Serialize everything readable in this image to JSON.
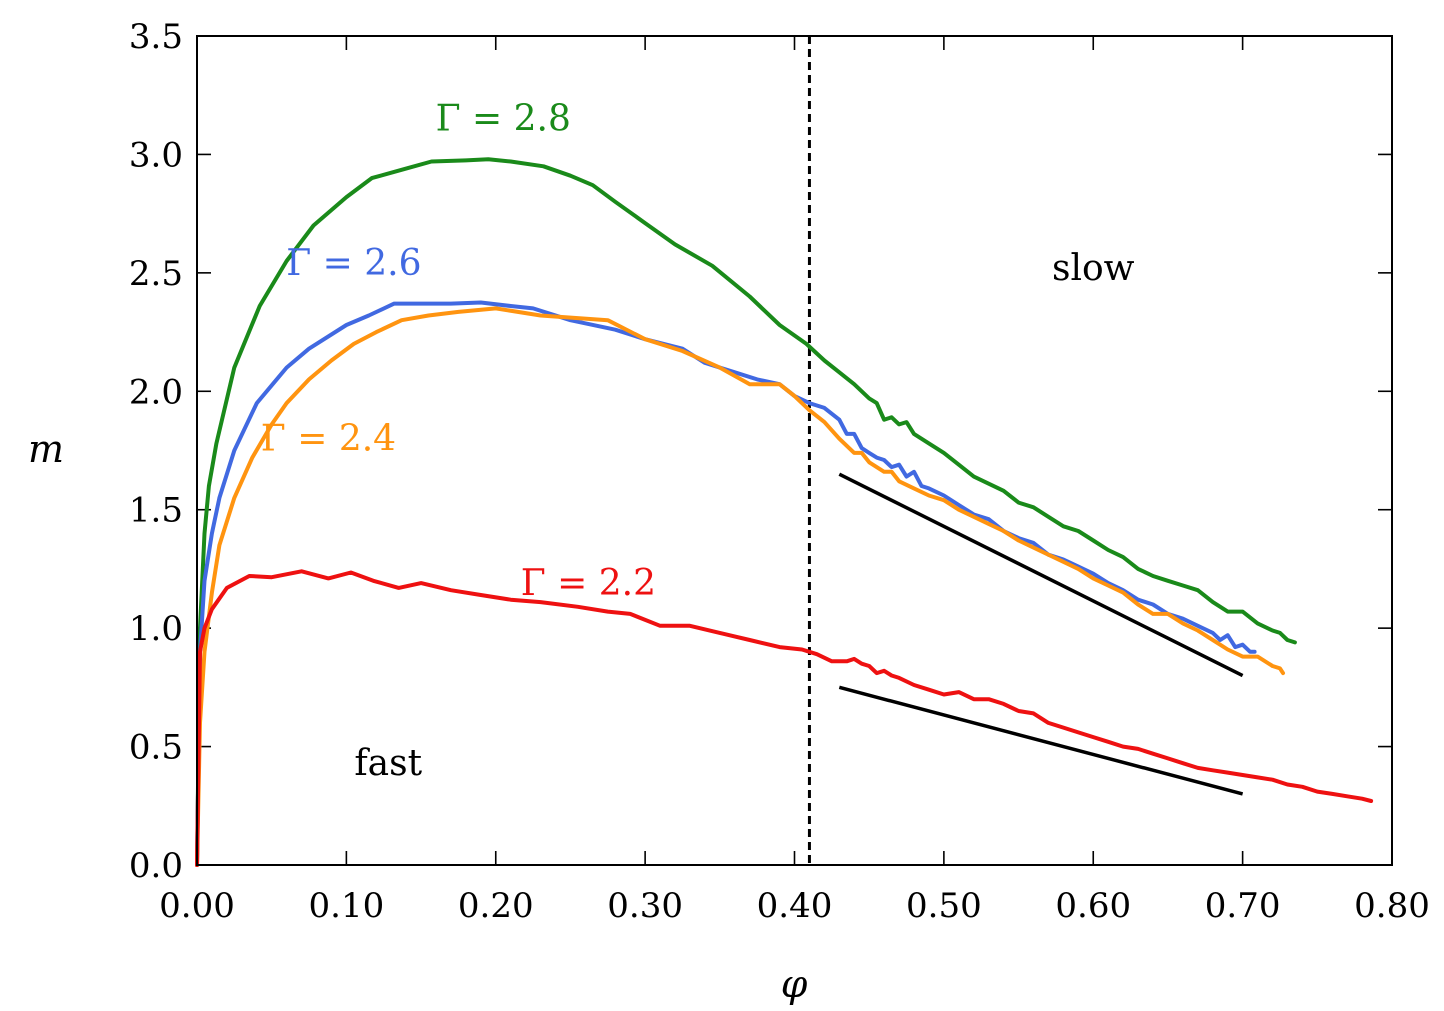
{
  "chart_data": {
    "type": "line",
    "xlabel": "φ",
    "ylabel": "m",
    "xlim": [
      0.0,
      0.8
    ],
    "ylim": [
      0.0,
      3.5
    ],
    "xticks": [
      "0.00",
      "0.10",
      "0.20",
      "0.30",
      "0.40",
      "0.50",
      "0.60",
      "0.70",
      "0.80"
    ],
    "yticks": [
      "0.0",
      "0.5",
      "1.0",
      "1.5",
      "2.0",
      "2.5",
      "3.0",
      "3.5"
    ],
    "grid": false,
    "series": [
      {
        "name": "Γ = 2.8",
        "color": "#1a8a1a",
        "x": [
          0.0,
          0.002,
          0.005,
          0.008,
          0.013,
          0.025,
          0.042,
          0.06,
          0.078,
          0.1,
          0.117,
          0.14,
          0.157,
          0.18,
          0.195,
          0.21,
          0.232,
          0.25,
          0.265,
          0.28,
          0.3,
          0.32,
          0.345,
          0.37,
          0.39,
          0.408,
          0.42,
          0.43,
          0.44,
          0.45,
          0.455,
          0.46,
          0.465,
          0.47,
          0.475,
          0.48,
          0.49,
          0.5,
          0.51,
          0.52,
          0.53,
          0.54,
          0.55,
          0.56,
          0.57,
          0.58,
          0.59,
          0.6,
          0.61,
          0.62,
          0.63,
          0.64,
          0.65,
          0.66,
          0.67,
          0.68,
          0.69,
          0.7,
          0.71,
          0.72,
          0.725,
          0.73,
          0.735
        ],
        "y": [
          0.0,
          1.0,
          1.4,
          1.6,
          1.78,
          2.1,
          2.36,
          2.55,
          2.7,
          2.82,
          2.9,
          2.94,
          2.97,
          2.975,
          2.98,
          2.97,
          2.95,
          2.91,
          2.87,
          2.8,
          2.71,
          2.62,
          2.53,
          2.4,
          2.28,
          2.2,
          2.13,
          2.08,
          2.03,
          1.97,
          1.95,
          1.88,
          1.89,
          1.86,
          1.87,
          1.82,
          1.78,
          1.74,
          1.69,
          1.64,
          1.61,
          1.58,
          1.53,
          1.51,
          1.47,
          1.43,
          1.41,
          1.37,
          1.33,
          1.3,
          1.25,
          1.22,
          1.2,
          1.18,
          1.16,
          1.11,
          1.07,
          1.07,
          1.02,
          0.99,
          0.98,
          0.95,
          0.94
        ]
      },
      {
        "name": "Γ = 2.6",
        "color": "#4169e1",
        "x": [
          0.0,
          0.002,
          0.005,
          0.01,
          0.015,
          0.025,
          0.04,
          0.06,
          0.075,
          0.1,
          0.115,
          0.132,
          0.15,
          0.17,
          0.19,
          0.21,
          0.225,
          0.25,
          0.28,
          0.3,
          0.325,
          0.34,
          0.36,
          0.375,
          0.39,
          0.4,
          0.41,
          0.42,
          0.43,
          0.435,
          0.44,
          0.445,
          0.45,
          0.455,
          0.46,
          0.465,
          0.47,
          0.475,
          0.48,
          0.485,
          0.49,
          0.5,
          0.51,
          0.52,
          0.53,
          0.54,
          0.55,
          0.56,
          0.57,
          0.58,
          0.59,
          0.6,
          0.61,
          0.62,
          0.63,
          0.64,
          0.65,
          0.66,
          0.67,
          0.68,
          0.685,
          0.69,
          0.695,
          0.7,
          0.705,
          0.708
        ],
        "y": [
          0.0,
          0.9,
          1.2,
          1.4,
          1.55,
          1.75,
          1.95,
          2.1,
          2.18,
          2.28,
          2.32,
          2.37,
          2.37,
          2.37,
          2.375,
          2.36,
          2.35,
          2.3,
          2.26,
          2.22,
          2.18,
          2.12,
          2.08,
          2.05,
          2.03,
          1.98,
          1.95,
          1.93,
          1.88,
          1.82,
          1.82,
          1.76,
          1.74,
          1.72,
          1.71,
          1.68,
          1.69,
          1.64,
          1.66,
          1.6,
          1.59,
          1.56,
          1.52,
          1.48,
          1.46,
          1.41,
          1.38,
          1.36,
          1.31,
          1.29,
          1.26,
          1.23,
          1.19,
          1.16,
          1.12,
          1.1,
          1.06,
          1.04,
          1.01,
          0.98,
          0.95,
          0.97,
          0.92,
          0.93,
          0.9,
          0.9
        ]
      },
      {
        "name": "Γ = 2.4",
        "color": "#ff9410",
        "x": [
          0.0,
          0.002,
          0.005,
          0.01,
          0.015,
          0.025,
          0.037,
          0.05,
          0.06,
          0.075,
          0.09,
          0.105,
          0.12,
          0.137,
          0.155,
          0.175,
          0.2,
          0.23,
          0.275,
          0.3,
          0.325,
          0.35,
          0.37,
          0.39,
          0.4,
          0.41,
          0.42,
          0.43,
          0.44,
          0.445,
          0.45,
          0.46,
          0.465,
          0.47,
          0.48,
          0.49,
          0.5,
          0.51,
          0.52,
          0.53,
          0.54,
          0.55,
          0.56,
          0.57,
          0.58,
          0.59,
          0.6,
          0.61,
          0.62,
          0.63,
          0.64,
          0.65,
          0.66,
          0.67,
          0.68,
          0.69,
          0.7,
          0.71,
          0.72,
          0.725,
          0.727
        ],
        "y": [
          0.0,
          0.6,
          0.9,
          1.15,
          1.35,
          1.55,
          1.72,
          1.86,
          1.95,
          2.05,
          2.13,
          2.2,
          2.25,
          2.3,
          2.32,
          2.335,
          2.35,
          2.32,
          2.3,
          2.22,
          2.17,
          2.1,
          2.03,
          2.03,
          1.98,
          1.92,
          1.87,
          1.8,
          1.74,
          1.74,
          1.7,
          1.66,
          1.66,
          1.62,
          1.59,
          1.56,
          1.54,
          1.5,
          1.47,
          1.44,
          1.41,
          1.37,
          1.34,
          1.31,
          1.28,
          1.25,
          1.21,
          1.18,
          1.15,
          1.1,
          1.06,
          1.06,
          1.02,
          0.99,
          0.95,
          0.91,
          0.88,
          0.88,
          0.84,
          0.83,
          0.81
        ]
      },
      {
        "name": "Γ = 2.2",
        "color": "#ee1111",
        "x": [
          0.0,
          0.002,
          0.005,
          0.01,
          0.02,
          0.035,
          0.05,
          0.07,
          0.088,
          0.103,
          0.118,
          0.135,
          0.15,
          0.17,
          0.19,
          0.21,
          0.23,
          0.255,
          0.275,
          0.29,
          0.31,
          0.33,
          0.35,
          0.37,
          0.39,
          0.405,
          0.415,
          0.425,
          0.435,
          0.44,
          0.445,
          0.45,
          0.455,
          0.46,
          0.465,
          0.47,
          0.48,
          0.49,
          0.5,
          0.51,
          0.52,
          0.53,
          0.54,
          0.55,
          0.56,
          0.57,
          0.58,
          0.59,
          0.6,
          0.61,
          0.62,
          0.63,
          0.64,
          0.65,
          0.66,
          0.67,
          0.68,
          0.69,
          0.7,
          0.71,
          0.72,
          0.73,
          0.74,
          0.75,
          0.76,
          0.77,
          0.78,
          0.786
        ],
        "y": [
          0.0,
          0.9,
          1.0,
          1.08,
          1.17,
          1.22,
          1.215,
          1.24,
          1.21,
          1.235,
          1.2,
          1.17,
          1.19,
          1.16,
          1.14,
          1.12,
          1.11,
          1.09,
          1.07,
          1.06,
          1.01,
          1.01,
          0.98,
          0.95,
          0.92,
          0.91,
          0.89,
          0.86,
          0.86,
          0.87,
          0.85,
          0.84,
          0.81,
          0.82,
          0.8,
          0.79,
          0.76,
          0.74,
          0.72,
          0.73,
          0.7,
          0.7,
          0.68,
          0.65,
          0.64,
          0.6,
          0.58,
          0.56,
          0.54,
          0.52,
          0.5,
          0.49,
          0.47,
          0.45,
          0.43,
          0.41,
          0.4,
          0.39,
          0.38,
          0.37,
          0.36,
          0.34,
          0.33,
          0.31,
          0.3,
          0.29,
          0.28,
          0.27
        ]
      }
    ],
    "annotations": [
      {
        "text": "Γ = 2.8",
        "x": 0.205,
        "y": 3.1,
        "color": "#1a8a1a"
      },
      {
        "text": "Γ = 2.6",
        "x": 0.105,
        "y": 2.49,
        "color": "#4169e1"
      },
      {
        "text": "Γ = 2.4",
        "x": 0.088,
        "y": 1.75,
        "color": "#ff9410"
      },
      {
        "text": "Γ = 2.2",
        "x": 0.262,
        "y": 1.14,
        "color": "#ee1111"
      },
      {
        "text": "slow",
        "x": 0.6,
        "y": 2.47,
        "color": "#000000"
      },
      {
        "text": "fast",
        "x": 0.128,
        "y": 0.38,
        "color": "#000000"
      }
    ],
    "reference_lines": [
      {
        "x": [
          0.43,
          0.7
        ],
        "y": [
          1.65,
          0.8
        ]
      },
      {
        "x": [
          0.43,
          0.7
        ],
        "y": [
          0.75,
          0.3
        ]
      }
    ],
    "vline": 0.41
  }
}
